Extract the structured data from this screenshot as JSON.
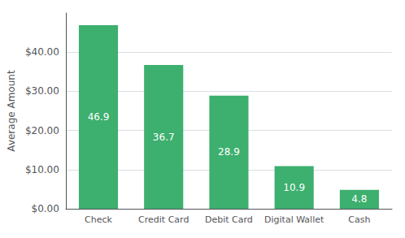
{
  "chart_data": {
    "type": "bar",
    "categories": [
      "Check",
      "Credit Card",
      "Debit Card",
      "Digital Wallet",
      "Cash"
    ],
    "values": [
      46.9,
      36.7,
      28.9,
      10.9,
      4.8
    ],
    "color": "#3daf6e",
    "ylabel": "Average Amount",
    "ylim": [
      0,
      50
    ],
    "yticks": [
      {
        "value": 0,
        "label": "$0.00"
      },
      {
        "value": 10,
        "label": "$10.00"
      },
      {
        "value": 20,
        "label": "$20.00"
      },
      {
        "value": 30,
        "label": "$30.00"
      },
      {
        "value": 40,
        "label": "$40.00"
      }
    ],
    "grid": true,
    "data_labels": true
  }
}
